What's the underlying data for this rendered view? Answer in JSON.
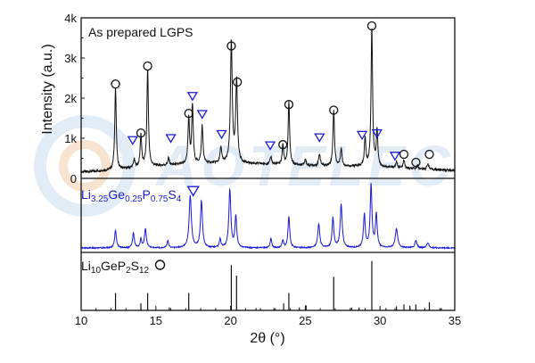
{
  "watermark": {
    "text": "AOTELEC",
    "color": "#cfe0f3"
  },
  "colors": {
    "top": "#111111",
    "middle": "#1a1ad6",
    "sticks": "#111111",
    "marker_circle": "#111111",
    "marker_triangle": "#1a1ad6"
  },
  "chart_data": [
    {
      "panel": "top",
      "type": "line",
      "label": "As prepared LGPS",
      "xlim": [
        10,
        35
      ],
      "ylim": [
        0,
        4000
      ],
      "yticks": [
        0,
        1000,
        2000,
        3000,
        4000
      ],
      "ytick_labels": [
        "0",
        "1k",
        "2k",
        "3k",
        "4k"
      ],
      "ylabel": "Intensity (a.u.)",
      "baseline": [
        [
          10,
          160
        ],
        [
          12,
          200
        ],
        [
          14,
          280
        ],
        [
          16,
          330
        ],
        [
          18,
          370
        ],
        [
          19.5,
          380
        ],
        [
          22,
          360
        ],
        [
          25,
          320
        ],
        [
          28,
          300
        ],
        [
          30,
          280
        ],
        [
          32,
          240
        ],
        [
          35,
          200
        ]
      ],
      "peaks": [
        {
          "x": 12.3,
          "h": 2050,
          "w": 0.06
        },
        {
          "x": 13.55,
          "h": 200,
          "w": 0.06
        },
        {
          "x": 14.0,
          "h": 800,
          "w": 0.06
        },
        {
          "x": 14.45,
          "h": 2450,
          "w": 0.06
        },
        {
          "x": 15.85,
          "h": 180,
          "w": 0.06
        },
        {
          "x": 17.2,
          "h": 1150,
          "w": 0.06
        },
        {
          "x": 17.45,
          "h": 1450,
          "w": 0.06
        },
        {
          "x": 18.1,
          "h": 950,
          "w": 0.06
        },
        {
          "x": 19.35,
          "h": 400,
          "w": 0.06
        },
        {
          "x": 20.05,
          "h": 3050,
          "w": 0.07
        },
        {
          "x": 20.4,
          "h": 2050,
          "w": 0.07
        },
        {
          "x": 22.7,
          "h": 180,
          "w": 0.06
        },
        {
          "x": 23.5,
          "h": 480,
          "w": 0.06
        },
        {
          "x": 23.9,
          "h": 1550,
          "w": 0.06
        },
        {
          "x": 25.0,
          "h": 150,
          "w": 0.06
        },
        {
          "x": 25.95,
          "h": 300,
          "w": 0.06
        },
        {
          "x": 26.9,
          "h": 1400,
          "w": 0.06
        },
        {
          "x": 27.4,
          "h": 450,
          "w": 0.06
        },
        {
          "x": 29.0,
          "h": 700,
          "w": 0.06
        },
        {
          "x": 29.45,
          "h": 3500,
          "w": 0.06
        },
        {
          "x": 29.8,
          "h": 900,
          "w": 0.06
        },
        {
          "x": 31.1,
          "h": 150,
          "w": 0.06
        },
        {
          "x": 31.6,
          "h": 200,
          "w": 0.06
        },
        {
          "x": 32.5,
          "h": 100,
          "w": 0.06
        },
        {
          "x": 33.2,
          "h": 150,
          "w": 0.06
        }
      ],
      "circle_markers": [
        {
          "x": 12.3,
          "y": 2350
        },
        {
          "x": 14.0,
          "y": 1130
        },
        {
          "x": 14.45,
          "y": 2800
        },
        {
          "x": 17.2,
          "y": 1620
        },
        {
          "x": 20.05,
          "y": 3300
        },
        {
          "x": 20.45,
          "y": 2400
        },
        {
          "x": 23.5,
          "y": 840
        },
        {
          "x": 23.9,
          "y": 1840
        },
        {
          "x": 26.9,
          "y": 1700
        },
        {
          "x": 29.45,
          "y": 3800
        },
        {
          "x": 31.6,
          "y": 600
        },
        {
          "x": 32.4,
          "y": 400
        },
        {
          "x": 33.3,
          "y": 600
        }
      ],
      "triangle_markers": [
        {
          "x": 13.45,
          "y": 950
        },
        {
          "x": 16.0,
          "y": 1000
        },
        {
          "x": 17.45,
          "y": 2050
        },
        {
          "x": 18.1,
          "y": 1600
        },
        {
          "x": 19.4,
          "y": 1100
        },
        {
          "x": 22.65,
          "y": 820
        },
        {
          "x": 25.95,
          "y": 1020
        },
        {
          "x": 28.8,
          "y": 1080
        },
        {
          "x": 29.8,
          "y": 1120
        },
        {
          "x": 31.0,
          "y": 560
        }
      ]
    },
    {
      "panel": "middle",
      "type": "line",
      "label_parts": [
        {
          "t": "Li",
          "sub": false
        },
        {
          "t": "3.25",
          "sub": true
        },
        {
          "t": "Ge",
          "sub": false
        },
        {
          "t": "0.25",
          "sub": true
        },
        {
          "t": "P",
          "sub": false
        },
        {
          "t": "0.75",
          "sub": true
        },
        {
          "t": "S",
          "sub": false
        },
        {
          "t": "4",
          "sub": true
        }
      ],
      "legend_marker": "triangle",
      "xlim": [
        10,
        35
      ],
      "ylim": [
        0,
        1
      ],
      "baseline": 0.06,
      "peaks": [
        {
          "x": 12.3,
          "h": 0.24,
          "w": 0.07
        },
        {
          "x": 13.5,
          "h": 0.2,
          "w": 0.07
        },
        {
          "x": 14.0,
          "h": 0.12,
          "w": 0.06
        },
        {
          "x": 14.3,
          "h": 0.26,
          "w": 0.07
        },
        {
          "x": 15.8,
          "h": 0.1,
          "w": 0.06
        },
        {
          "x": 17.3,
          "h": 0.7,
          "w": 0.09
        },
        {
          "x": 18.05,
          "h": 0.63,
          "w": 0.08
        },
        {
          "x": 19.3,
          "h": 0.12,
          "w": 0.06
        },
        {
          "x": 19.95,
          "h": 0.78,
          "w": 0.08
        },
        {
          "x": 20.35,
          "h": 0.42,
          "w": 0.07
        },
        {
          "x": 22.7,
          "h": 0.13,
          "w": 0.06
        },
        {
          "x": 23.5,
          "h": 0.1,
          "w": 0.06
        },
        {
          "x": 23.9,
          "h": 0.42,
          "w": 0.07
        },
        {
          "x": 25.9,
          "h": 0.32,
          "w": 0.08
        },
        {
          "x": 26.85,
          "h": 0.4,
          "w": 0.07
        },
        {
          "x": 27.4,
          "h": 0.58,
          "w": 0.08
        },
        {
          "x": 28.95,
          "h": 0.45,
          "w": 0.07
        },
        {
          "x": 29.4,
          "h": 0.85,
          "w": 0.07
        },
        {
          "x": 29.75,
          "h": 0.45,
          "w": 0.07
        },
        {
          "x": 31.1,
          "h": 0.25,
          "w": 0.1
        },
        {
          "x": 32.4,
          "h": 0.1,
          "w": 0.08
        },
        {
          "x": 33.2,
          "h": 0.07,
          "w": 0.08
        }
      ]
    },
    {
      "panel": "bottom",
      "type": "bar",
      "label_parts": [
        {
          "t": "Li",
          "sub": false
        },
        {
          "t": "10",
          "sub": true
        },
        {
          "t": "GeP",
          "sub": false
        },
        {
          "t": "2",
          "sub": true
        },
        {
          "t": "S",
          "sub": false
        },
        {
          "t": "12",
          "sub": true
        }
      ],
      "legend_marker": "circle",
      "xlim": [
        10,
        35
      ],
      "ylim": [
        0,
        1
      ],
      "sticks": [
        {
          "x": 12.3,
          "h": 0.3
        },
        {
          "x": 14.0,
          "h": 0.12
        },
        {
          "x": 14.45,
          "h": 0.3
        },
        {
          "x": 15.9,
          "h": 0.05
        },
        {
          "x": 17.2,
          "h": 0.3
        },
        {
          "x": 20.05,
          "h": 0.78
        },
        {
          "x": 20.4,
          "h": 0.6
        },
        {
          "x": 21.7,
          "h": 0.04
        },
        {
          "x": 22.9,
          "h": 0.04
        },
        {
          "x": 23.55,
          "h": 0.12
        },
        {
          "x": 23.9,
          "h": 0.3
        },
        {
          "x": 24.6,
          "h": 0.05
        },
        {
          "x": 25.05,
          "h": 0.09
        },
        {
          "x": 26.9,
          "h": 0.58
        },
        {
          "x": 28.1,
          "h": 0.05
        },
        {
          "x": 28.6,
          "h": 0.05
        },
        {
          "x": 29.45,
          "h": 0.85
        },
        {
          "x": 30.4,
          "h": 0.04
        },
        {
          "x": 31.1,
          "h": 0.07
        },
        {
          "x": 31.6,
          "h": 0.1
        },
        {
          "x": 32.0,
          "h": 0.08
        },
        {
          "x": 32.4,
          "h": 0.1
        },
        {
          "x": 33.3,
          "h": 0.14
        },
        {
          "x": 34.1,
          "h": 0.04
        }
      ]
    }
  ],
  "x_axis": {
    "ticks": [
      10,
      15,
      20,
      25,
      30,
      35
    ],
    "tick_labels": [
      "10",
      "15",
      "20",
      "25",
      "30",
      "35"
    ],
    "label": "2θ (°)"
  }
}
